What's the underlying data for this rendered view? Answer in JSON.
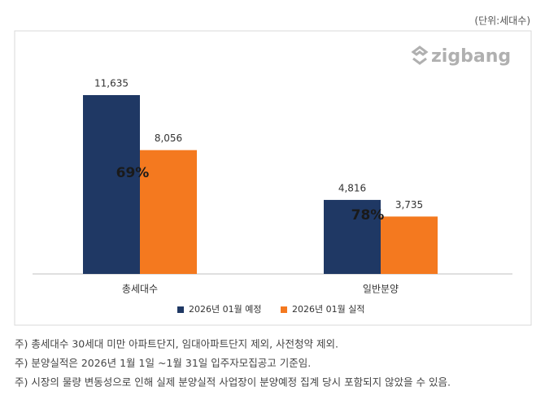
{
  "chart_data": {
    "type": "bar",
    "unit": "(단위:세대수)",
    "watermark": "zigbang",
    "categories": [
      "총세대수",
      "일반분양"
    ],
    "series": [
      {
        "name": "2026년 01월 예정",
        "color": "#1f3864",
        "values": [
          11635,
          4816
        ],
        "value_labels": [
          "11,635",
          "4,816"
        ]
      },
      {
        "name": "2026년 01월 실적",
        "color": "#f4791f",
        "values": [
          8056,
          3735
        ],
        "value_labels": [
          "8,056",
          "3,735"
        ]
      }
    ],
    "annotations": [
      "69%",
      "78%"
    ]
  },
  "notes": [
    "주) 총세대수 30세대 미만 아파트단지, 임대아파트단지 제외, 사전청약 제외.",
    "주) 분양실적은 2026년 1월 1일 ~1월 31일 입주자모집공고 기준임.",
    "주) 시장의 물량 변동성으로 인해 실제 분양실적 사업장이 분양예정 집계 당시 포함되지 않았을 수 있음."
  ]
}
